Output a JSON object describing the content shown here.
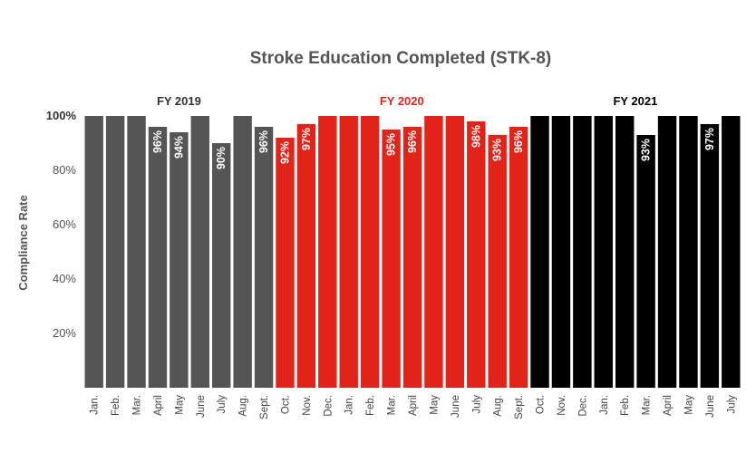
{
  "chart_data": {
    "type": "bar",
    "title": "Stroke Education Completed (STK-8)",
    "ylabel": "Compliance Rate",
    "xlabel": "",
    "ylim": [
      0,
      100
    ],
    "y_ticks": [
      "20%",
      "40%",
      "60%",
      "80%",
      "100%"
    ],
    "grid": false,
    "groups": [
      {
        "name": "FY 2019",
        "color": "#555556"
      },
      {
        "name": "FY 2020",
        "color": "#e2231a"
      },
      {
        "name": "FY 2021",
        "color": "#000000"
      }
    ],
    "categories": [
      "Jan.",
      "Feb.",
      "Mar.",
      "April",
      "May",
      "June",
      "July",
      "Aug.",
      "Sept.",
      "Oct.",
      "Nov.",
      "Dec.",
      "Jan.",
      "Feb.",
      "Mar.",
      "April",
      "May",
      "June",
      "July",
      "Aug.",
      "Sept.",
      "Oct.",
      "Nov.",
      "Dec.",
      "Jan.",
      "Feb.",
      "Mar.",
      "April",
      "May",
      "June",
      "July"
    ],
    "values": [
      100,
      100,
      100,
      96,
      94,
      100,
      90,
      100,
      96,
      92,
      97,
      100,
      100,
      100,
      95,
      96,
      100,
      100,
      98,
      93,
      96,
      100,
      100,
      100,
      100,
      100,
      93,
      100,
      100,
      97,
      100
    ],
    "group_index": [
      0,
      0,
      0,
      0,
      0,
      0,
      0,
      0,
      0,
      1,
      1,
      1,
      1,
      1,
      1,
      1,
      1,
      1,
      1,
      1,
      1,
      2,
      2,
      2,
      2,
      2,
      2,
      2,
      2,
      2,
      2
    ],
    "data_labels": [
      "",
      "",
      "",
      "96%",
      "94%",
      "",
      "90%",
      "",
      "96%",
      "92%",
      "97%",
      "",
      "",
      "",
      "95%",
      "96%",
      "",
      "",
      "98%",
      "93%",
      "96%",
      "",
      "",
      "",
      "",
      "",
      "93%",
      "",
      "",
      "97%",
      ""
    ]
  }
}
